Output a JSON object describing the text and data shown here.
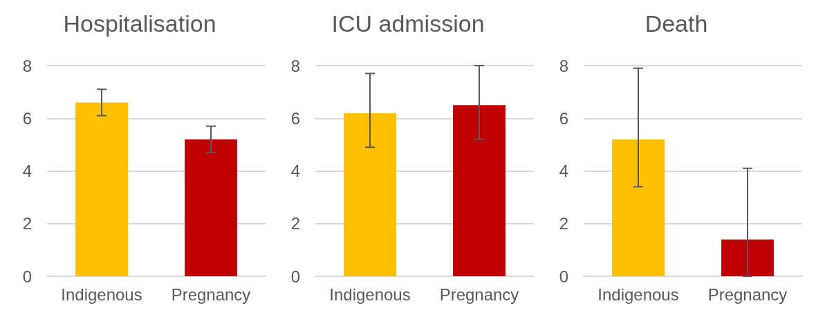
{
  "chart_data": [
    {
      "type": "bar",
      "title": "Hospitalisation",
      "categories": [
        "Indigenous",
        "Pregnancy"
      ],
      "values": [
        6.6,
        5.2
      ],
      "colors": [
        "#ffc000",
        "#c00000"
      ],
      "errors": [
        [
          6.1,
          7.1
        ],
        [
          4.7,
          5.7
        ]
      ],
      "ylim": [
        0,
        8
      ],
      "yticks": [
        0,
        2,
        4,
        6,
        8
      ],
      "grid": "y"
    },
    {
      "type": "bar",
      "title": "ICU admission",
      "categories": [
        "Indigenous",
        "Pregnancy"
      ],
      "values": [
        6.2,
        6.5
      ],
      "colors": [
        "#ffc000",
        "#c00000"
      ],
      "errors": [
        [
          4.9,
          7.7
        ],
        [
          5.2,
          8.0
        ]
      ],
      "ylim": [
        0,
        8
      ],
      "yticks": [
        0,
        2,
        4,
        6,
        8
      ],
      "grid": "y"
    },
    {
      "type": "bar",
      "title": "Death",
      "categories": [
        "Indigenous",
        "Pregnancy"
      ],
      "values": [
        5.2,
        1.4
      ],
      "colors": [
        "#ffc000",
        "#c00000"
      ],
      "errors": [
        [
          3.4,
          7.9
        ],
        [
          0,
          4.1
        ]
      ],
      "ylim": [
        0,
        8
      ],
      "yticks": [
        0,
        2,
        4,
        6,
        8
      ],
      "grid": "y"
    }
  ]
}
